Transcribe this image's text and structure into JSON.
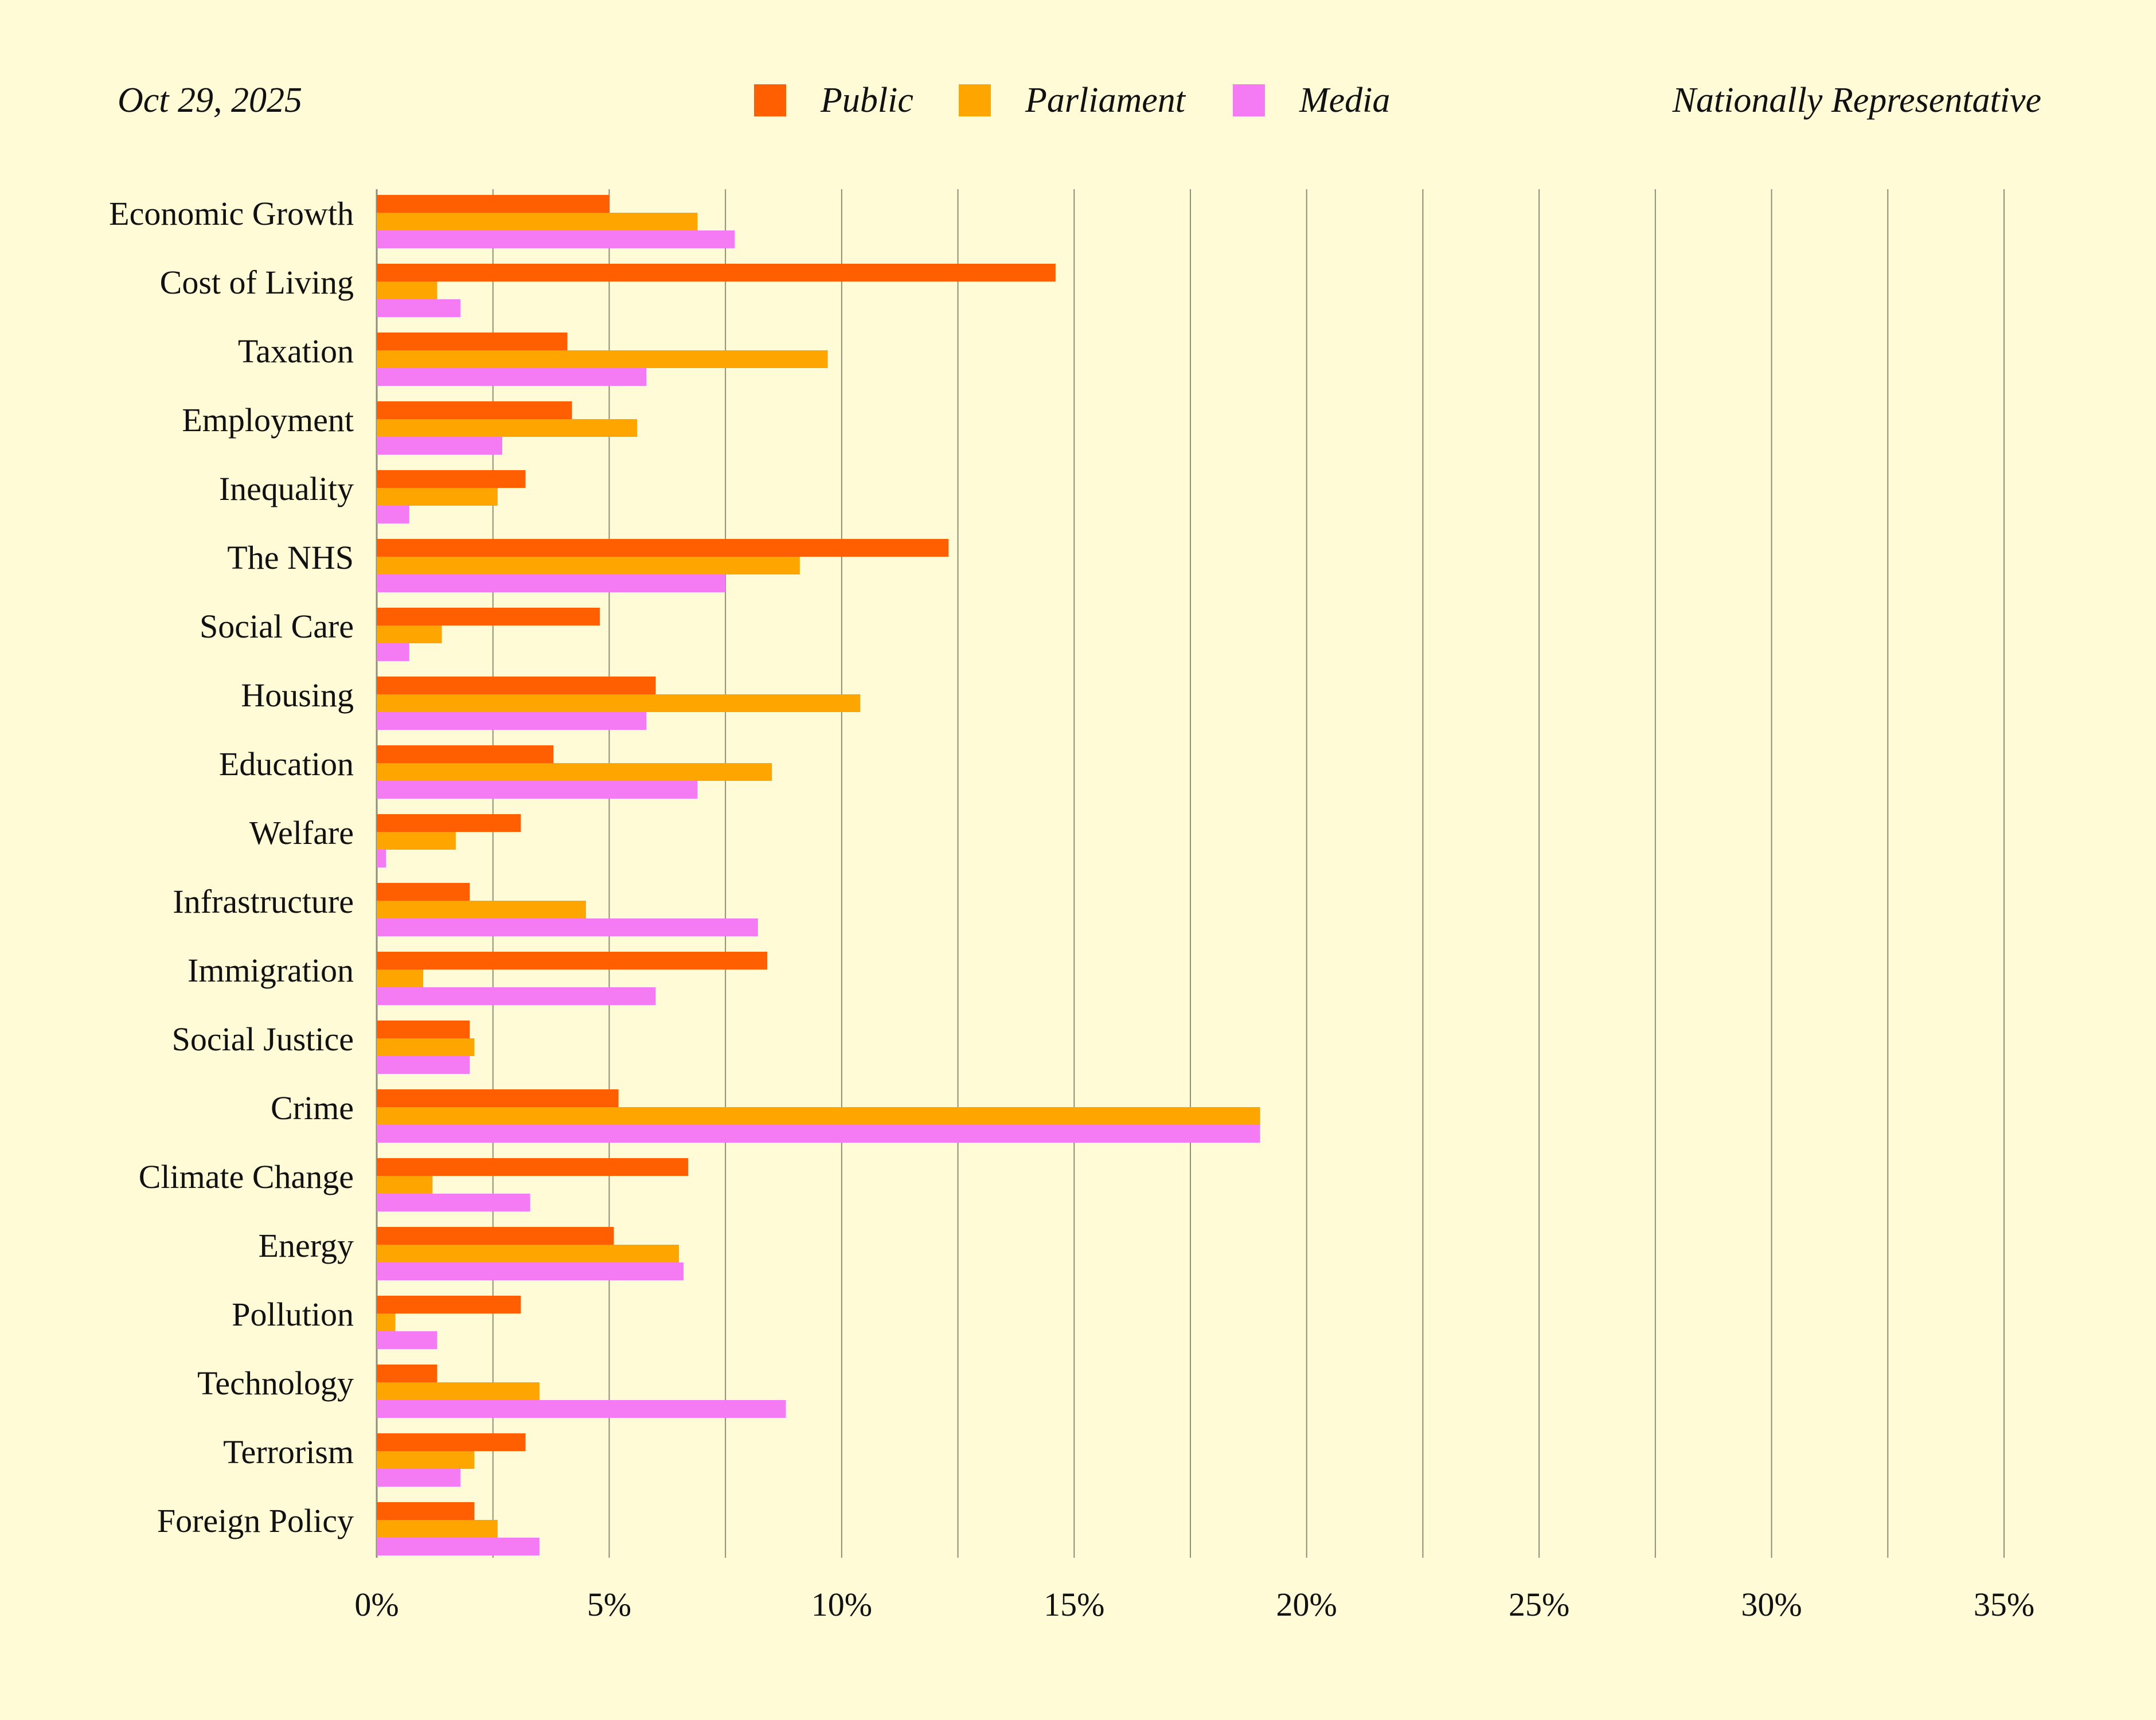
{
  "header": {
    "date": "Oct 29, 2025",
    "sample": "Nationally Representative"
  },
  "legend": [
    {
      "name": "Public",
      "color": "#FF5F00"
    },
    {
      "name": "Parliament",
      "color": "#FFA500"
    },
    {
      "name": "Media",
      "color": "#F57BF5"
    }
  ],
  "chart_data": {
    "type": "bar",
    "orientation": "horizontal",
    "title": "",
    "xlabel": "",
    "ylabel": "",
    "xlim": [
      0,
      35
    ],
    "x_ticks": [
      "0%",
      "5%",
      "10%",
      "15%",
      "20%",
      "25%",
      "30%",
      "35%"
    ],
    "grid": true,
    "legend_position": "top",
    "categories": [
      "Economic Growth",
      "Cost of Living",
      "Taxation",
      "Employment",
      "Inequality",
      "The NHS",
      "Social Care",
      "Housing",
      "Education",
      "Welfare",
      "Infrastructure",
      "Immigration",
      "Social Justice",
      "Crime",
      "Climate Change",
      "Energy",
      "Pollution",
      "Technology",
      "Terrorism",
      "Foreign Policy"
    ],
    "series": [
      {
        "name": "Public",
        "color": "#FF5F00",
        "values": [
          5.0,
          14.6,
          4.1,
          4.2,
          3.2,
          12.3,
          4.8,
          6.0,
          3.8,
          3.1,
          2.0,
          8.4,
          2.0,
          5.2,
          6.7,
          5.1,
          3.1,
          1.3,
          3.2,
          2.1
        ]
      },
      {
        "name": "Parliament",
        "color": "#FFA500",
        "values": [
          6.9,
          1.3,
          9.7,
          5.6,
          2.6,
          9.1,
          1.4,
          10.4,
          8.5,
          1.7,
          4.5,
          1.0,
          2.1,
          19.0,
          1.2,
          6.5,
          0.4,
          3.5,
          2.1,
          2.6
        ]
      },
      {
        "name": "Media",
        "color": "#F57BF5",
        "values": [
          7.7,
          1.8,
          5.8,
          2.7,
          0.7,
          7.5,
          0.7,
          5.8,
          6.9,
          0.2,
          8.2,
          6.0,
          2.0,
          19.0,
          3.3,
          6.6,
          1.3,
          8.8,
          1.8,
          3.5
        ]
      }
    ]
  }
}
